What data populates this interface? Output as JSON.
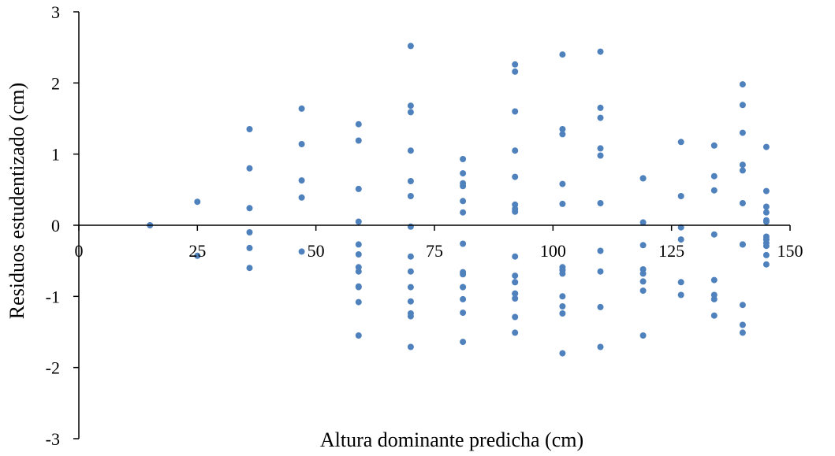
{
  "chart_data": {
    "type": "scatter",
    "title": "",
    "xlabel": "Altura dominante predicha (cm)",
    "ylabel": "Residuos estudentizado (cm)",
    "xlim": [
      0,
      150
    ],
    "ylim": [
      -3,
      3
    ],
    "xticks": [
      0,
      25,
      50,
      75,
      100,
      125,
      150
    ],
    "yticks": [
      -3,
      -2,
      -1,
      0,
      1,
      2,
      3
    ],
    "grid": false,
    "legend": "none",
    "marker_color": "#4F81BD",
    "axis_color": "#000000",
    "series": [
      {
        "x": [
          15,
          25,
          25,
          36,
          36,
          36,
          36,
          36,
          36,
          47,
          47,
          47,
          47,
          47,
          59,
          59,
          59,
          59,
          59,
          59,
          59,
          59,
          59,
          59,
          59,
          59,
          70,
          70,
          70,
          70,
          70,
          70,
          70,
          70,
          70,
          70,
          70,
          70,
          70,
          70,
          81,
          81,
          81,
          81,
          81,
          81,
          81,
          81,
          81,
          81,
          81,
          81,
          81,
          81,
          92,
          92,
          92,
          92,
          92,
          92,
          92,
          92,
          92,
          92,
          92,
          92,
          92,
          92,
          92,
          92,
          92,
          102,
          102,
          102,
          102,
          102,
          102,
          102,
          102,
          102,
          102,
          102,
          102,
          102,
          110,
          110,
          110,
          110,
          110,
          110,
          110,
          110,
          110,
          110,
          119,
          119,
          119,
          119,
          119,
          119,
          119,
          119,
          119,
          127,
          127,
          127,
          127,
          127,
          127,
          134,
          134,
          134,
          134,
          134,
          134,
          134,
          134,
          140,
          140,
          140,
          140,
          140,
          140,
          140,
          140,
          140,
          140,
          140,
          145,
          145,
          145,
          145,
          145,
          145,
          145,
          145,
          145,
          145,
          145,
          145,
          145
        ],
        "y": [
          0,
          0.33,
          -0.43,
          1.35,
          0.8,
          0.24,
          -0.1,
          -0.32,
          -0.6,
          1.64,
          1.14,
          0.63,
          0.39,
          -0.37,
          1.42,
          1.19,
          0.51,
          0.05,
          -0.27,
          -0.41,
          -0.59,
          -0.65,
          -0.86,
          -1.08,
          -1.55,
          -0.87,
          2.52,
          1.68,
          1.59,
          1.05,
          0.62,
          0.41,
          -0.02,
          -0.44,
          -0.65,
          -1.07,
          -1.24,
          -1.28,
          -1.71,
          -0.87,
          0.93,
          0.73,
          0.59,
          0.55,
          0.34,
          0.18,
          -0.26,
          -0.66,
          -0.69,
          -1.04,
          -1.23,
          -1.64,
          -0.87,
          -0.87,
          2.26,
          2.16,
          1.6,
          1.05,
          0.68,
          0.29,
          0.23,
          0.19,
          -0.44,
          -0.71,
          -0.8,
          -0.96,
          -1.03,
          -1.29,
          -1.51,
          -0.8,
          -0.96,
          2.4,
          1.35,
          1.28,
          0.58,
          0.3,
          -0.59,
          -0.63,
          -0.68,
          -1.0,
          -1.14,
          -1.24,
          -1.8,
          -0.63,
          2.44,
          1.65,
          1.51,
          1.08,
          0.98,
          0.31,
          -0.36,
          -0.65,
          -1.15,
          -1.71,
          0.66,
          0.66,
          0.04,
          -0.28,
          -0.62,
          -0.68,
          -0.79,
          -0.92,
          -1.55,
          1.17,
          0.41,
          -0.03,
          -0.2,
          -0.8,
          -0.98,
          1.12,
          0.69,
          0.49,
          -0.13,
          -0.77,
          -0.98,
          -1.04,
          -1.27,
          1.98,
          1.69,
          1.3,
          0.85,
          0.77,
          0.31,
          -0.27,
          -1.12,
          -1.4,
          -1.51,
          -0.27,
          1.1,
          0.48,
          0.26,
          0.18,
          0.07,
          0.05,
          -0.16,
          -0.2,
          -0.25,
          -0.29,
          -0.42,
          -0.55,
          -0.2
        ]
      }
    ]
  }
}
